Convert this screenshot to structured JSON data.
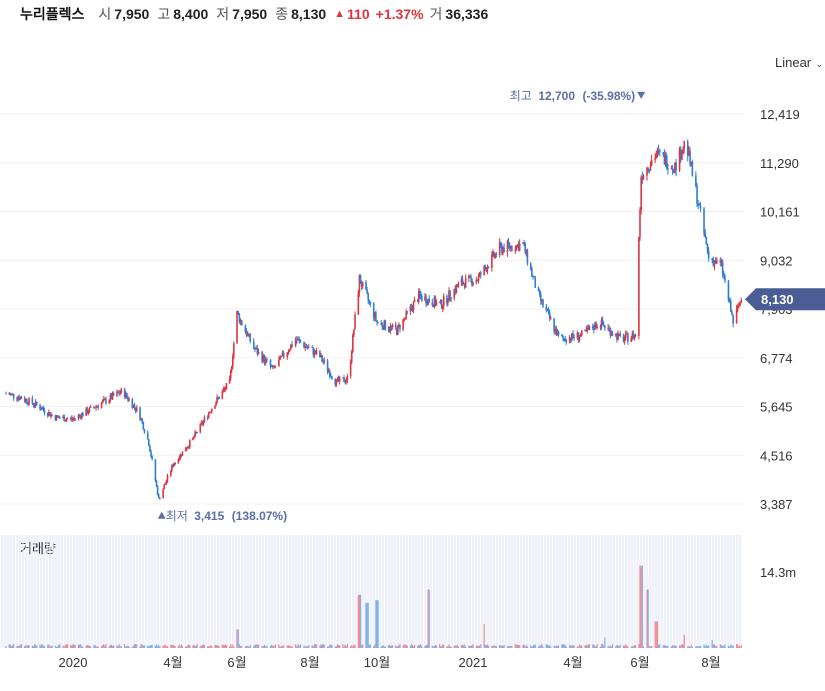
{
  "header": {
    "name": "누리플렉스",
    "open_label": "시",
    "open": "7,950",
    "high_label": "고",
    "high": "8,400",
    "low_label": "저",
    "low": "7,950",
    "close_label": "종",
    "close": "8,130",
    "change_arrow": "▲",
    "change": "110",
    "change_pct": "+1.37%",
    "volume_label": "거",
    "volume": "36,336"
  },
  "scale_select": {
    "value": "Linear"
  },
  "chart_data": {
    "type": "candlestick",
    "ylim": [
      3000,
      13000
    ],
    "yticks": [
      3387,
      4516,
      5645,
      6774,
      7903,
      9032,
      10161,
      11290,
      12419
    ],
    "ytick_labels": [
      "3,387",
      "4,516",
      "5,645",
      "6,774",
      "7,903",
      "9,032",
      "10,161",
      "11,290",
      "12,419"
    ],
    "xtick_labels": [
      "2020",
      "4월",
      "6월",
      "8월",
      "10월",
      "2021",
      "4월",
      "6월",
      "8월"
    ],
    "xtick_dates": [
      "2020-01-01",
      "2020-04-01",
      "2020-06-01",
      "2020-08-01",
      "2020-10-01",
      "2021-01-01",
      "2021-04-01",
      "2021-06-01",
      "2021-08-01"
    ],
    "last_price_label": "8,130",
    "last_price": 8130,
    "high_annotation": {
      "label": "최고",
      "value": "12,700",
      "pct": "(-35.98%)",
      "date": "2021-06-02",
      "price": 12700
    },
    "low_annotation": {
      "label": "최저",
      "value": "3,415",
      "pct": "(138.07%)",
      "date": "2020-03-19",
      "price": 3415
    },
    "up_color": "#e0343f",
    "down_color": "#2e7cd6",
    "price_path": [
      [
        "2019-11-01",
        5950
      ],
      [
        "2019-11-15",
        5850
      ],
      [
        "2019-12-01",
        5650
      ],
      [
        "2019-12-15",
        5400
      ],
      [
        "2020-01-01",
        5350
      ],
      [
        "2020-01-15",
        5550
      ],
      [
        "2020-02-01",
        5800
      ],
      [
        "2020-02-15",
        6000
      ],
      [
        "2020-03-01",
        5500
      ],
      [
        "2020-03-10",
        4800
      ],
      [
        "2020-03-19",
        3500
      ],
      [
        "2020-04-01",
        4300
      ],
      [
        "2020-04-20",
        4900
      ],
      [
        "2020-05-10",
        5700
      ],
      [
        "2020-05-25",
        6200
      ],
      [
        "2020-06-01",
        7800
      ],
      [
        "2020-06-15",
        7000
      ],
      [
        "2020-07-01",
        6500
      ],
      [
        "2020-07-20",
        7200
      ],
      [
        "2020-08-10",
        6800
      ],
      [
        "2020-08-25",
        6200
      ],
      [
        "2020-09-05",
        6300
      ],
      [
        "2020-09-15",
        8600
      ],
      [
        "2020-10-01",
        7600
      ],
      [
        "2020-10-20",
        7400
      ],
      [
        "2020-11-10",
        8200
      ],
      [
        "2020-12-01",
        8000
      ],
      [
        "2020-12-20",
        8500
      ],
      [
        "2021-01-05",
        8600
      ],
      [
        "2021-01-25",
        9300
      ],
      [
        "2021-02-15",
        9400
      ],
      [
        "2021-03-01",
        8200
      ],
      [
        "2021-03-20",
        7200
      ],
      [
        "2021-04-10",
        7300
      ],
      [
        "2021-04-25",
        7600
      ],
      [
        "2021-05-15",
        7200
      ],
      [
        "2021-05-28",
        7300
      ],
      [
        "2021-06-02",
        11000
      ],
      [
        "2021-06-15",
        11500
      ],
      [
        "2021-07-01",
        11200
      ],
      [
        "2021-07-10",
        11800
      ],
      [
        "2021-07-20",
        10500
      ],
      [
        "2021-07-30",
        9100
      ],
      [
        "2021-08-10",
        8900
      ],
      [
        "2021-08-20",
        7600
      ],
      [
        "2021-08-27",
        8130
      ]
    ],
    "volume_label": "거래량",
    "volume_ytick_label": "14.3m",
    "volume_ytick": 14300000,
    "volume_spikes": [
      [
        "2020-06-01",
        3500000
      ],
      [
        "2020-09-15",
        10000000
      ],
      [
        "2020-09-22",
        8500000
      ],
      [
        "2020-10-01",
        9000000
      ],
      [
        "2020-11-20",
        11000000
      ],
      [
        "2021-01-10",
        4500000
      ],
      [
        "2021-05-01",
        2000000
      ],
      [
        "2021-06-02",
        15500000
      ],
      [
        "2021-06-07",
        11000000
      ],
      [
        "2021-06-15",
        5000000
      ],
      [
        "2021-07-10",
        2500000
      ],
      [
        "2021-08-01",
        1500000
      ]
    ]
  }
}
